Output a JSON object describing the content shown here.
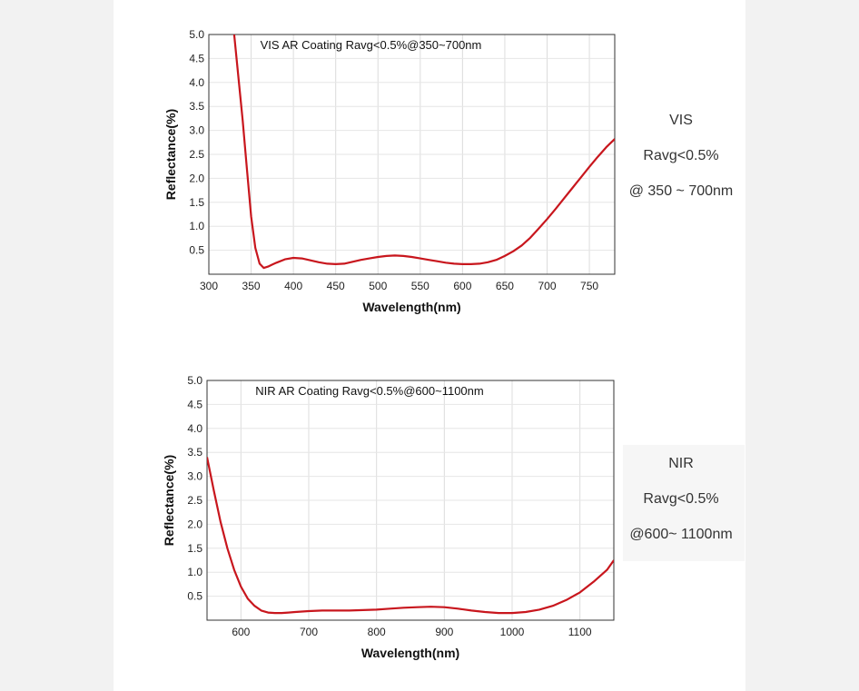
{
  "chart_data": [
    {
      "type": "line",
      "title": "VIS AR Coating Ravg<0.5%@350~700nm",
      "xlabel": "Wavelength(nm)",
      "ylabel": "Reflectance(%)",
      "xlim": [
        300,
        780
      ],
      "ylim": [
        0,
        5.0
      ],
      "xticks": [
        "300",
        "350",
        "400",
        "450",
        "500",
        "550",
        "600",
        "650",
        "700",
        "750"
      ],
      "yticks": [
        "0.5",
        "1.0",
        "1.5",
        "2.0",
        "2.5",
        "3.0",
        "3.5",
        "4.0",
        "4.5",
        "5.0"
      ],
      "grid": true,
      "series": [
        {
          "color": "#c8161d",
          "x": [
            330,
            340,
            345,
            350,
            355,
            360,
            365,
            370,
            375,
            380,
            390,
            400,
            410,
            420,
            430,
            440,
            450,
            460,
            470,
            480,
            490,
            500,
            510,
            520,
            530,
            540,
            550,
            560,
            570,
            580,
            590,
            600,
            610,
            620,
            630,
            640,
            650,
            660,
            670,
            680,
            690,
            700,
            710,
            720,
            730,
            740,
            750,
            760,
            770,
            780
          ],
          "y": [
            5.0,
            3.2,
            2.2,
            1.2,
            0.55,
            0.22,
            0.13,
            0.16,
            0.2,
            0.24,
            0.31,
            0.34,
            0.33,
            0.29,
            0.25,
            0.22,
            0.21,
            0.22,
            0.26,
            0.3,
            0.33,
            0.36,
            0.38,
            0.39,
            0.38,
            0.36,
            0.33,
            0.3,
            0.27,
            0.24,
            0.22,
            0.21,
            0.21,
            0.22,
            0.25,
            0.3,
            0.38,
            0.48,
            0.6,
            0.76,
            0.95,
            1.15,
            1.36,
            1.58,
            1.8,
            2.02,
            2.24,
            2.45,
            2.65,
            2.82
          ]
        }
      ]
    },
    {
      "type": "line",
      "title": "NIR AR Coating Ravg<0.5%@600~1100nm",
      "xlabel": "Wavelength(nm)",
      "ylabel": "Reflectance(%)",
      "xlim": [
        550,
        1150
      ],
      "ylim": [
        0,
        5.0
      ],
      "xticks": [
        "600",
        "700",
        "800",
        "900",
        "1000",
        "1100"
      ],
      "yticks": [
        "0.5",
        "1.0",
        "1.5",
        "2.0",
        "2.5",
        "3.0",
        "3.5",
        "4.0",
        "4.5",
        "5.0"
      ],
      "grid": true,
      "series": [
        {
          "color": "#c8161d",
          "x": [
            550,
            560,
            570,
            580,
            590,
            600,
            610,
            620,
            630,
            640,
            650,
            660,
            670,
            680,
            700,
            720,
            740,
            760,
            780,
            800,
            820,
            840,
            860,
            880,
            900,
            920,
            940,
            960,
            980,
            1000,
            1020,
            1040,
            1060,
            1080,
            1100,
            1120,
            1140,
            1150
          ],
          "y": [
            3.4,
            2.7,
            2.05,
            1.5,
            1.05,
            0.7,
            0.45,
            0.3,
            0.2,
            0.16,
            0.15,
            0.15,
            0.16,
            0.17,
            0.19,
            0.2,
            0.2,
            0.2,
            0.21,
            0.22,
            0.24,
            0.26,
            0.27,
            0.28,
            0.27,
            0.24,
            0.2,
            0.17,
            0.15,
            0.15,
            0.17,
            0.22,
            0.3,
            0.42,
            0.58,
            0.8,
            1.05,
            1.25
          ]
        }
      ]
    }
  ],
  "notes": {
    "vis": [
      "VIS",
      "Ravg<0.5%",
      "@ 350 ~ 700nm"
    ],
    "nir": [
      "NIR",
      "Ravg<0.5%",
      "@600~ 1100nm"
    ]
  }
}
